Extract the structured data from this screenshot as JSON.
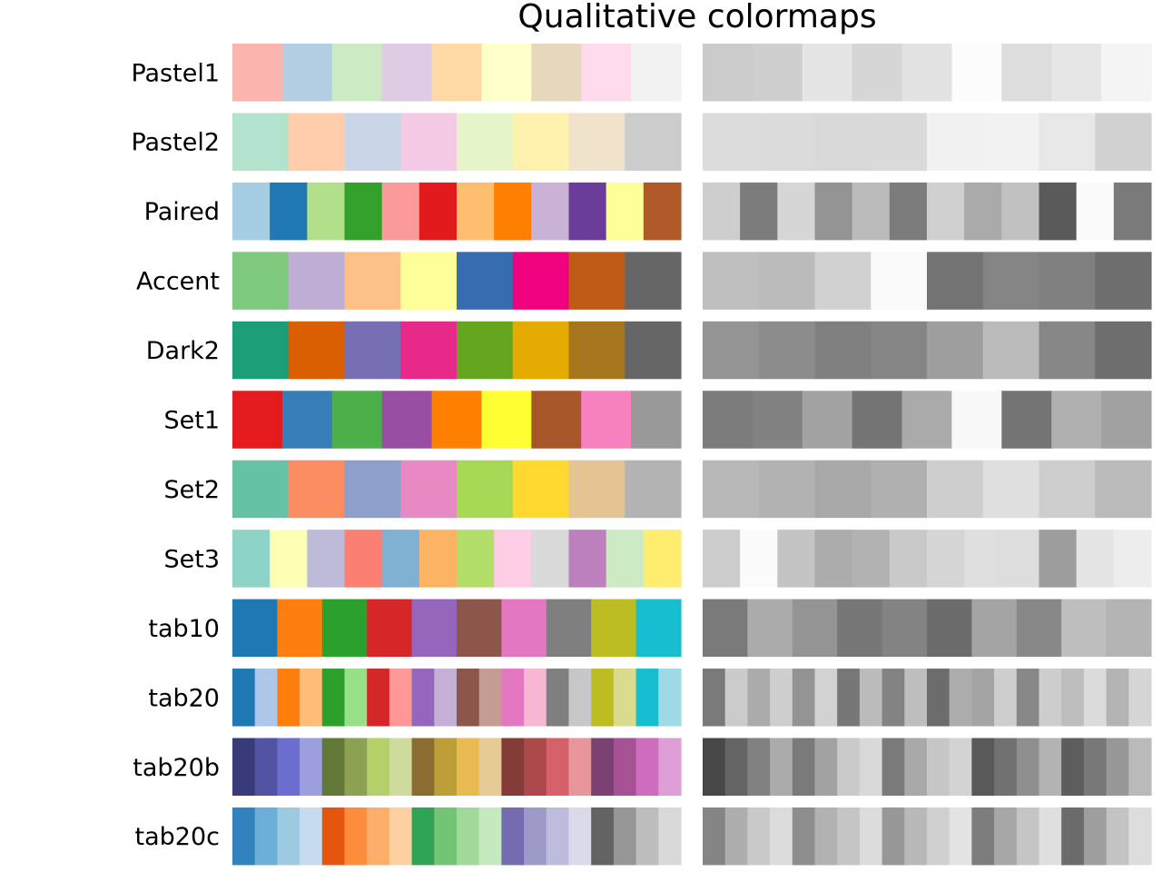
{
  "chart_data": {
    "type": "heatmap",
    "title": "Qualitative colormaps",
    "panels": [
      "color",
      "grayscale"
    ],
    "colormaps": [
      {
        "name": "Pastel1",
        "colors": [
          "#fbb4ae",
          "#b3cde3",
          "#ccebc5",
          "#decbe4",
          "#fed9a6",
          "#ffffcc",
          "#e5d8bd",
          "#fddaec",
          "#f2f2f2"
        ]
      },
      {
        "name": "Pastel2",
        "colors": [
          "#b3e2cd",
          "#fdcdac",
          "#cbd5e8",
          "#f4cae4",
          "#e6f5c9",
          "#fff2ae",
          "#f1e2cc",
          "#cccccc"
        ]
      },
      {
        "name": "Paired",
        "colors": [
          "#a6cee3",
          "#1f78b4",
          "#b2df8a",
          "#33a02c",
          "#fb9a99",
          "#e31a1c",
          "#fdbf6f",
          "#ff7f00",
          "#cab2d6",
          "#6a3d9a",
          "#ffff99",
          "#b15928"
        ]
      },
      {
        "name": "Accent",
        "colors": [
          "#7fc97f",
          "#beaed4",
          "#fdc086",
          "#ffff99",
          "#386cb0",
          "#f0027f",
          "#bf5b17",
          "#666666"
        ]
      },
      {
        "name": "Dark2",
        "colors": [
          "#1b9e77",
          "#d95f02",
          "#7570b3",
          "#e7298a",
          "#66a61e",
          "#e6ab02",
          "#a6761d",
          "#666666"
        ]
      },
      {
        "name": "Set1",
        "colors": [
          "#e41a1c",
          "#377eb8",
          "#4daf4a",
          "#984ea3",
          "#ff7f00",
          "#ffff33",
          "#a65628",
          "#f781bf",
          "#999999"
        ]
      },
      {
        "name": "Set2",
        "colors": [
          "#66c2a5",
          "#fc8d62",
          "#8da0cb",
          "#e78ac3",
          "#a6d854",
          "#ffd92f",
          "#e5c494",
          "#b3b3b3"
        ]
      },
      {
        "name": "Set3",
        "colors": [
          "#8dd3c7",
          "#ffffb3",
          "#bebada",
          "#fb8072",
          "#80b1d3",
          "#fdb462",
          "#b3de69",
          "#fccde5",
          "#d9d9d9",
          "#bc80bd",
          "#ccebc5",
          "#ffed6f"
        ]
      },
      {
        "name": "tab10",
        "colors": [
          "#1f77b4",
          "#ff7f0e",
          "#2ca02c",
          "#d62728",
          "#9467bd",
          "#8c564b",
          "#e377c2",
          "#7f7f7f",
          "#bcbd22",
          "#17becf"
        ]
      },
      {
        "name": "tab20",
        "colors": [
          "#1f77b4",
          "#aec7e8",
          "#ff7f0e",
          "#ffbb78",
          "#2ca02c",
          "#98df8a",
          "#d62728",
          "#ff9896",
          "#9467bd",
          "#c5b0d5",
          "#8c564b",
          "#c49c94",
          "#e377c2",
          "#f7b6d2",
          "#7f7f7f",
          "#c7c7c7",
          "#bcbd22",
          "#dbdb8d",
          "#17becf",
          "#9edae5"
        ]
      },
      {
        "name": "tab20b",
        "colors": [
          "#393b79",
          "#5254a3",
          "#6b6ecf",
          "#9c9ede",
          "#637939",
          "#8ca252",
          "#b5cf6b",
          "#cedb9c",
          "#8c6d31",
          "#bd9e39",
          "#e7ba52",
          "#e7cb94",
          "#843c39",
          "#ad494a",
          "#d6616b",
          "#e7969c",
          "#7b4173",
          "#a55194",
          "#ce6dbd",
          "#de9ed6"
        ]
      },
      {
        "name": "tab20c",
        "colors": [
          "#3182bd",
          "#6baed6",
          "#9ecae1",
          "#c6dbef",
          "#e6550d",
          "#fd8d3c",
          "#fdae6b",
          "#fdd0a2",
          "#31a354",
          "#74c476",
          "#a1d99b",
          "#c7e9c0",
          "#756bb1",
          "#9e9ac8",
          "#bcbddc",
          "#dadaeb",
          "#636363",
          "#969696",
          "#bdbdbd",
          "#d9d9d9"
        ]
      }
    ]
  }
}
